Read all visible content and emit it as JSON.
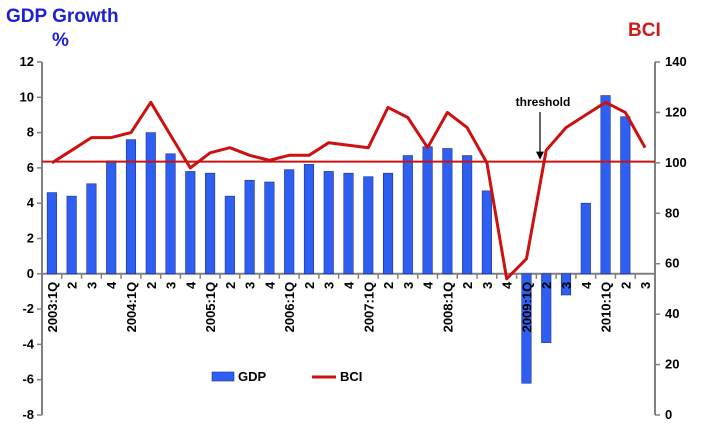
{
  "titles": {
    "left_line1": "GDP Growth",
    "left_line2": "%",
    "right": "BCI"
  },
  "colors": {
    "gdp_bar": "#2f5ff0",
    "bci_line": "#cc1111",
    "threshold_line": "#cc1111",
    "axis": "#808080"
  },
  "chart_data": {
    "type": "bar",
    "categories": [
      "2003:1Q",
      "2",
      "3",
      "4",
      "2004:1Q",
      "2",
      "3",
      "4",
      "2005:1Q",
      "2",
      "3",
      "4",
      "2006:1Q",
      "2",
      "3",
      "4",
      "2007:1Q",
      "2",
      "3",
      "4",
      "2008:1Q",
      "2",
      "3",
      "4",
      "2009:1Q",
      "2",
      "3",
      "4",
      "2010:1Q",
      "2",
      "3"
    ],
    "series": [
      {
        "name": "GDP",
        "axis": "left",
        "type": "bar",
        "values": [
          4.6,
          4.4,
          5.1,
          6.4,
          7.6,
          8.0,
          6.8,
          5.8,
          5.7,
          4.4,
          5.3,
          5.2,
          5.9,
          6.2,
          5.8,
          5.7,
          5.5,
          5.7,
          6.7,
          7.2,
          7.1,
          6.7,
          4.7,
          null,
          -6.2,
          -3.9,
          -1.2,
          4.0,
          10.1,
          8.9,
          null
        ]
      },
      {
        "name": "BCI",
        "axis": "right",
        "type": "line",
        "values": [
          100,
          105,
          110,
          110,
          112,
          124,
          111,
          98,
          104,
          106,
          103,
          101,
          103,
          103,
          108,
          107,
          106,
          122,
          118,
          106,
          120,
          114,
          100,
          54,
          62,
          105,
          114,
          119,
          124,
          120,
          106
        ]
      }
    ],
    "threshold": {
      "label": "threshold",
      "value": 100.5,
      "axis": "right"
    },
    "left_axis": {
      "ylim": [
        -8,
        12
      ],
      "ticks": [
        "-8",
        "-6",
        "-4",
        "-2",
        "0",
        "2",
        "4",
        "6",
        "8",
        "10",
        "12"
      ]
    },
    "right_axis": {
      "ylim": [
        0,
        140
      ],
      "ticks": [
        "0",
        "20",
        "40",
        "60",
        "80",
        "100",
        "120",
        "140"
      ]
    },
    "legend": {
      "placement": "bottom-center",
      "items": [
        "GDP",
        "BCI"
      ]
    }
  }
}
